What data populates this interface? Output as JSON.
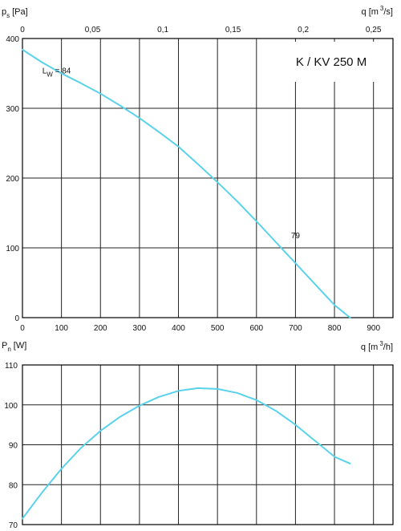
{
  "chart_data": [
    {
      "type": "line",
      "title": "K / KV 250 M",
      "ylabel": {
        "main": "p",
        "sub": "s",
        "unit": "[Pa]"
      },
      "xlabel_top": {
        "main": "q [m",
        "sup": "3",
        "unit": "/s]"
      },
      "ylim": [
        0,
        400
      ],
      "xlim": [
        0,
        950
      ],
      "y_ticks": [
        "0",
        "100",
        "200",
        "300",
        "400"
      ],
      "x_ticks_bottom": [
        "0",
        "100",
        "200",
        "300",
        "400",
        "500",
        "600",
        "700",
        "800",
        "900"
      ],
      "x_ticks_top": [
        "0",
        "0,05",
        "0,1",
        "0,15",
        "0,2",
        "0,25"
      ],
      "grid": true,
      "curve_color": "#5ad2ea",
      "annotations": [
        {
          "label_main": "L",
          "label_sub": "W",
          "label_rest": " = 84",
          "x": 205,
          "y": 350
        },
        {
          "label_main": "79",
          "label_sub": "",
          "label_rest": "",
          "x": 740,
          "y": 114
        }
      ],
      "series": [
        {
          "x": [
            0,
            50,
            100,
            150,
            200,
            250,
            300,
            350,
            400,
            450,
            500,
            550,
            600,
            650,
            700,
            750,
            800,
            840
          ],
          "y": [
            384,
            366,
            350,
            336,
            321,
            304,
            286,
            266,
            245,
            220,
            194,
            167,
            138,
            108,
            78,
            48,
            18,
            0
          ]
        }
      ]
    },
    {
      "type": "line",
      "ylabel": {
        "main": "P",
        "sub": "n",
        "unit": "[W]"
      },
      "xlabel": {
        "main": "q [m",
        "sup": "3",
        "unit": "/h]"
      },
      "ylim": [
        70,
        110
      ],
      "xlim": [
        0,
        950
      ],
      "y_ticks": [
        "70",
        "80",
        "90",
        "100",
        "110"
      ],
      "grid": true,
      "curve_color": "#5ad2ea",
      "series": [
        {
          "x": [
            0,
            50,
            100,
            150,
            200,
            250,
            300,
            350,
            400,
            450,
            500,
            550,
            600,
            650,
            700,
            750,
            800,
            840
          ],
          "y": [
            71.5,
            78,
            84,
            89.2,
            93.5,
            97,
            99.8,
            102,
            103.5,
            104.2,
            104,
            103,
            101.2,
            98.5,
            95,
            91,
            87,
            85.3
          ]
        }
      ]
    }
  ]
}
